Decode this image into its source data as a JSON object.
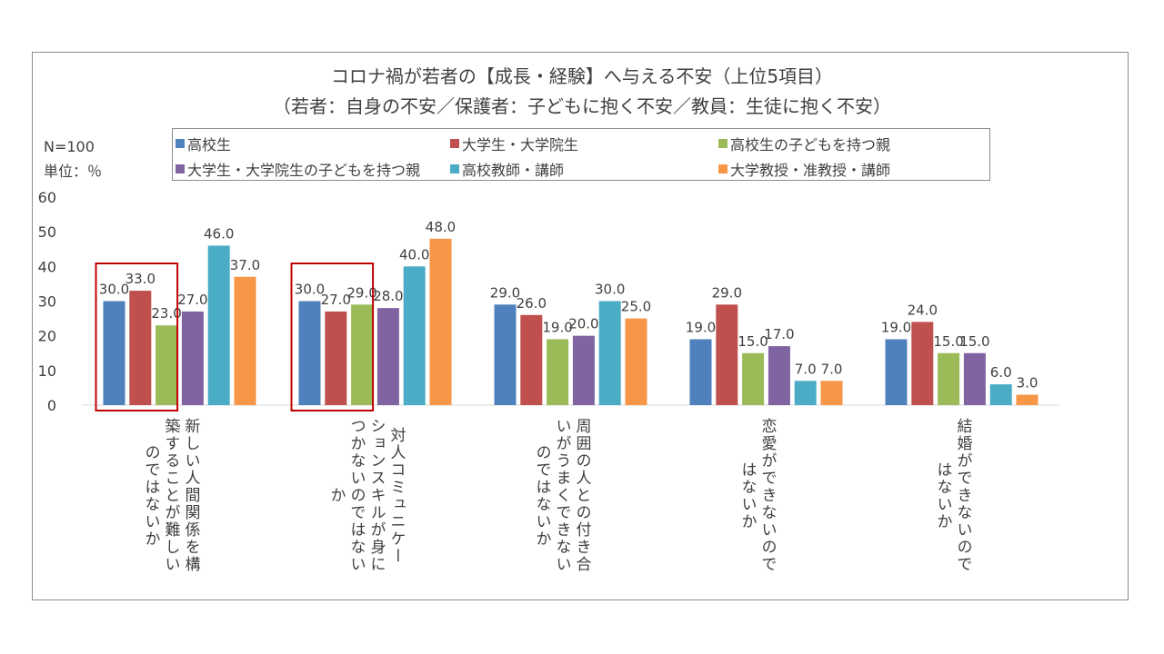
{
  "chart_data": {
    "type": "bar",
    "title": "コロナ禍が若者の【成長・経験】へ与える不安（上位5項目）",
    "subtitle": "（若者：自身の不安／保護者：子どもに抱く不安／教員：生徒に抱く不安）",
    "notes": [
      "N=100",
      "単位：％"
    ],
    "categories": [
      "新しい人間関係を構\n築することが難しい\nのではないか",
      "対人コミュニケー\nションスキルが身に\nつかないのではない\nか",
      "周囲の人との付き合\nいがうまくできない\nのではないか",
      "恋愛ができないので\nはないか",
      "結婚ができないので\nはないか"
    ],
    "series": [
      {
        "name": "高校生",
        "color": "#4f81bd",
        "values": [
          30.0,
          30.0,
          29.0,
          19.0,
          19.0
        ]
      },
      {
        "name": "大学生・大学院生",
        "color": "#c0504d",
        "values": [
          33.0,
          27.0,
          26.0,
          29.0,
          24.0
        ]
      },
      {
        "name": "高校生の子どもを持つ親",
        "color": "#9bbb59",
        "values": [
          23.0,
          29.0,
          19.0,
          15.0,
          15.0
        ]
      },
      {
        "name": "大学生・大学院生の子どもを持つ親",
        "color": "#8064a2",
        "values": [
          27.0,
          28.0,
          20.0,
          17.0,
          15.0
        ]
      },
      {
        "name": "高校教師・講師",
        "color": "#4bacc6",
        "values": [
          46.0,
          40.0,
          30.0,
          7.0,
          6.0
        ]
      },
      {
        "name": "大学教授・准教授・講師",
        "color": "#f79646",
        "values": [
          37.0,
          48.0,
          25.0,
          7.0,
          3.0
        ]
      }
    ],
    "yticks": [
      "0",
      "10",
      "20",
      "30",
      "40",
      "50",
      "60"
    ],
    "ylim": [
      0,
      60
    ],
    "grid": false,
    "legend_position": "top",
    "highlight_color": "#c00000",
    "highlighted": "first two bars of the first two categories"
  }
}
